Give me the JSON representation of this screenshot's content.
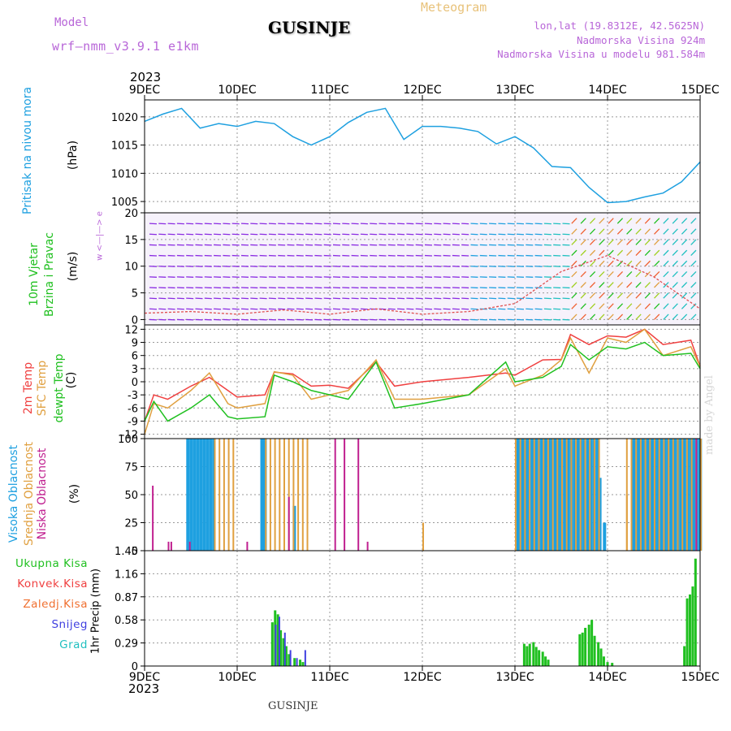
{
  "header": {
    "model_label": "Model",
    "model_name": "wrf—nmm_v3.9.1  e1km",
    "title": "GUSINJE",
    "meteogram": "Meteogram",
    "lonlat": "lon,lat (19.8312E, 42.5625N)",
    "elevation": "Nadmorska Visina 924m",
    "model_elevation": "Nadmorska Visina u modelu 981.584m"
  },
  "footer": {
    "station": "GUSINJE",
    "made_by": "made by Angel"
  },
  "x_axis": {
    "year": "2023",
    "ticks": [
      "9DEC",
      "10DEC",
      "11DEC",
      "12DEC",
      "13DEC",
      "14DEC",
      "15DEC"
    ]
  },
  "panel_labels": {
    "pressure": {
      "line1": "Pritisak na nivou mora",
      "unit": "(hPa)"
    },
    "wind": {
      "line1": "10m Vjetar",
      "line2": "Brzina i Pravac",
      "unit": "(m/s)",
      "compass": "w  <—|—>  e"
    },
    "temp": {
      "l1": "2m Temp",
      "l2": "SFC Temp",
      "l3": "dewpt Temp",
      "unit": "(C)"
    },
    "cloud": {
      "l1": "Visoka Oblacnost",
      "l2": "Srednja Oblacnost",
      "l3": "Niska Oblacnost",
      "unit": "(%)"
    },
    "precip": {
      "unit": "1hr Precip (mm)",
      "legend": [
        "Ukupna Kisa",
        "Konvek.Kisa",
        "Zaledj.Kisa",
        "Snijeg",
        "Grad"
      ]
    }
  },
  "colors": {
    "pressure": "#1ea0e0",
    "t2m": "#f04040",
    "tsfc": "#e0a040",
    "tdew": "#20c020",
    "high": "#1ea0e0",
    "mid": "#e0a040",
    "low": "#c02090",
    "rain": "#20c020",
    "conv": "#f04040",
    "frz": "#f07030",
    "snow": "#4040e0",
    "grad": "#20c0c0"
  },
  "chart_data": [
    {
      "type": "line",
      "name": "Sea-level pressure",
      "ylabel": "(hPa)",
      "ylim": [
        1003,
        1023
      ],
      "yticks": [
        1005,
        1010,
        1015,
        1020
      ],
      "x": [
        0,
        0.2,
        0.4,
        0.6,
        0.8,
        1.0,
        1.2,
        1.4,
        1.6,
        1.8,
        2.0,
        2.2,
        2.4,
        2.6,
        2.8,
        3.0,
        3.2,
        3.4,
        3.6,
        3.8,
        4.0,
        4.2,
        4.4,
        4.6,
        4.8,
        5.0,
        5.2,
        5.4,
        5.6,
        5.8,
        6.0
      ],
      "series": [
        {
          "values": [
            1019.2,
            1020.5,
            1021.5,
            1018,
            1018.8,
            1018.3,
            1019.2,
            1018.8,
            1016.5,
            1015,
            1016.5,
            1019,
            1020.8,
            1021.5,
            1016,
            1018.3,
            1018.3,
            1018,
            1017.4,
            1015.2,
            1016.5,
            1014.5,
            1011.2,
            1011,
            1007.5,
            1004.8,
            1005,
            1005.8,
            1006.5,
            1008.5,
            1012
          ]
        }
      ]
    },
    {
      "type": "line",
      "name": "10m wind speed",
      "ylabel": "(m/s)",
      "ylim": [
        -1,
        20
      ],
      "yticks": [
        0,
        5,
        10,
        15,
        20
      ],
      "x": [
        0,
        0.5,
        1,
        1.5,
        2,
        2.5,
        3,
        3.5,
        4,
        4.5,
        5,
        5.5,
        6
      ],
      "series": [
        {
          "values": [
            1.2,
            1.5,
            1,
            1.8,
            1,
            2,
            1,
            1.5,
            3,
            9,
            12,
            8,
            2
          ]
        }
      ]
    },
    {
      "type": "line",
      "name": "Temperature",
      "ylabel": "(C)",
      "ylim": [
        -13,
        13
      ],
      "yticks": [
        -12,
        -9,
        -6,
        -3,
        0,
        3,
        6,
        9,
        12
      ],
      "x": [
        0,
        0.1,
        0.25,
        0.5,
        0.7,
        0.9,
        1.0,
        1.3,
        1.4,
        1.6,
        1.8,
        2.0,
        2.2,
        2.5,
        2.7,
        3.0,
        3.5,
        3.9,
        4.0,
        4.3,
        4.5,
        4.6,
        4.8,
        5.0,
        5.2,
        5.4,
        5.6,
        5.9,
        6.0
      ],
      "series": [
        {
          "name": "2m Temp",
          "values": [
            -9,
            -3,
            -4,
            -1,
            1,
            -2,
            -3.5,
            -3,
            2.2,
            1.8,
            -1,
            -0.8,
            -1.5,
            4.5,
            -1,
            0,
            1,
            2,
            1.5,
            5,
            5.1,
            10.8,
            8.5,
            10.5,
            10.2,
            12,
            8.5,
            9.5,
            3.5
          ]
        },
        {
          "name": "SFC Temp",
          "values": [
            -12,
            -5,
            -6,
            -2,
            2,
            -5,
            -6,
            -5,
            2.3,
            1.5,
            -4,
            -3,
            -2,
            5,
            -4,
            -4,
            -3,
            3,
            -1,
            1.5,
            5,
            10,
            2,
            10,
            9,
            12,
            6,
            8,
            3.5
          ]
        },
        {
          "name": "dewpt Temp",
          "values": [
            -9,
            -4.5,
            -9,
            -6,
            -3,
            -8,
            -8.5,
            -8,
            1.5,
            0,
            -2,
            -3,
            -4,
            4.5,
            -6,
            -5,
            -3,
            4.5,
            0,
            1,
            3.5,
            8.5,
            5,
            8,
            7.5,
            9,
            6,
            6.5,
            3
          ]
        }
      ]
    },
    {
      "type": "bar",
      "name": "Cloud cover",
      "ylabel": "(%)",
      "ylim": [
        0,
        100
      ],
      "yticks": [
        0,
        25,
        50,
        75,
        100
      ],
      "series": [
        {
          "name": "Visoka Oblacnost",
          "blocks": [
            [
              0.45,
              0.75,
              100
            ],
            [
              1.25,
              1.3,
              100
            ],
            [
              4.0,
              4.9,
              100
            ],
            [
              5.25,
              6.0,
              100
            ]
          ],
          "singles": [
            [
              1.6,
              40
            ],
            [
              4.9,
              65
            ],
            [
              4.95,
              25
            ]
          ]
        },
        {
          "name": "Srednja Oblacnost",
          "blocks": [
            [
              0.75,
              1.0,
              100
            ],
            [
              1.3,
              1.8,
              100
            ],
            [
              4.0,
              4.9,
              100
            ],
            [
              5.2,
              6.0,
              100
            ]
          ],
          "singles": [
            [
              3.0,
              25
            ],
            [
              5.2,
              50
            ]
          ]
        },
        {
          "name": "Niska Oblacnost",
          "singles": [
            [
              0.08,
              58
            ],
            [
              0.25,
              8
            ],
            [
              0.28,
              8
            ],
            [
              0.48,
              8
            ],
            [
              1.1,
              8
            ],
            [
              1.55,
              48
            ],
            [
              2.05,
              100
            ],
            [
              2.15,
              100
            ],
            [
              2.3,
              100
            ],
            [
              2.4,
              8
            ],
            [
              5.95,
              100
            ]
          ]
        }
      ]
    },
    {
      "type": "bar",
      "name": "1hr precipitation",
      "ylabel": "1hr Precip (mm)",
      "ylim": [
        0,
        1.45
      ],
      "yticks": [
        0,
        0.29,
        0.58,
        0.87,
        1.16,
        1.45
      ],
      "series": [
        {
          "name": "Ukupna Kisa",
          "x": [
            1.38,
            1.41,
            1.44,
            1.47,
            1.5,
            1.53,
            1.56,
            1.62,
            1.68,
            1.71,
            4.1,
            4.13,
            4.16,
            4.2,
            4.23,
            4.26,
            4.3,
            4.33,
            4.36,
            4.7,
            4.73,
            4.76,
            4.8,
            4.83,
            4.86,
            4.9,
            4.93,
            4.96,
            5.0,
            5.05,
            5.83,
            5.86,
            5.89,
            5.92,
            5.95
          ],
          "values": [
            0.55,
            0.7,
            0.65,
            0.45,
            0.35,
            0.25,
            0.15,
            0.1,
            0.08,
            0.05,
            0.28,
            0.25,
            0.28,
            0.3,
            0.24,
            0.2,
            0.18,
            0.12,
            0.08,
            0.4,
            0.42,
            0.48,
            0.52,
            0.58,
            0.38,
            0.3,
            0.22,
            0.12,
            0.05,
            0.04,
            0.25,
            0.85,
            0.9,
            1.0,
            1.35
          ]
        },
        {
          "name": "Snijeg",
          "x": [
            1.42,
            1.46,
            1.52,
            1.58,
            1.65,
            1.74
          ],
          "values": [
            0.52,
            0.62,
            0.42,
            0.2,
            0.1,
            0.2
          ]
        }
      ]
    }
  ]
}
